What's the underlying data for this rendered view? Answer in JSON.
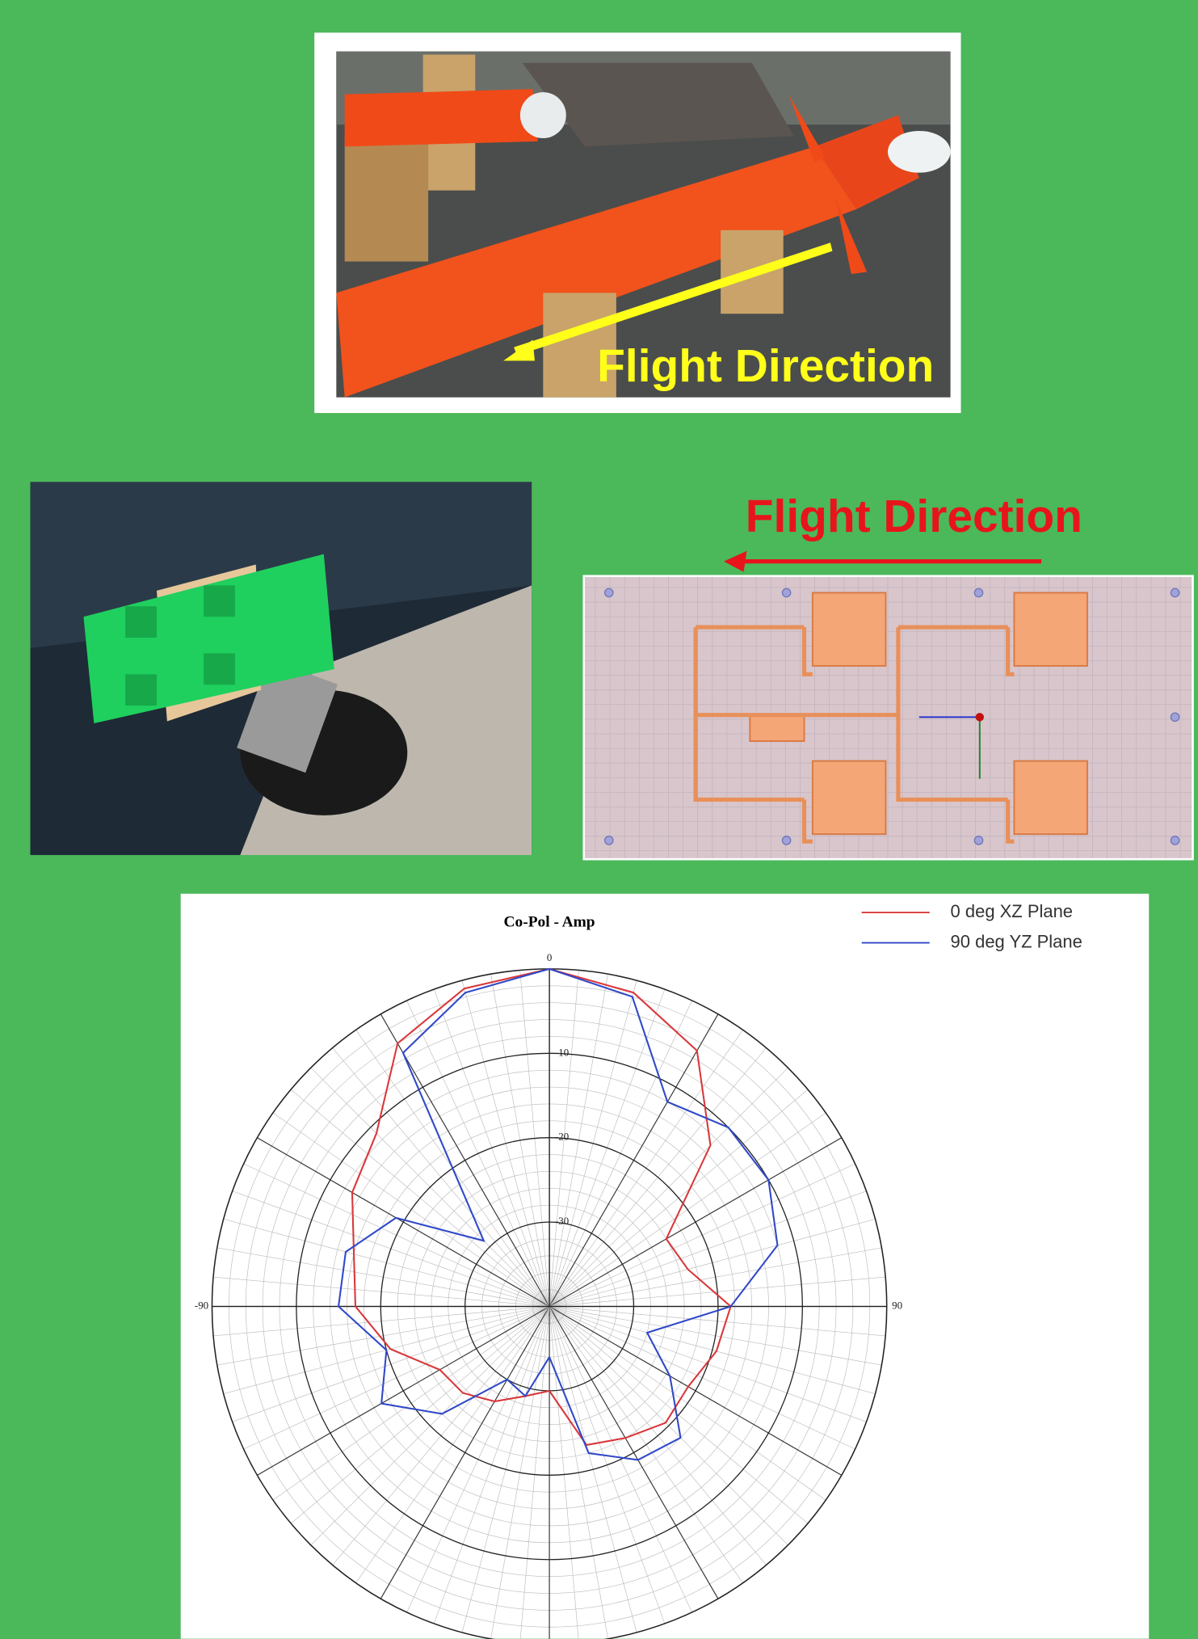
{
  "annotations": {
    "photo_label": "Flight Direction",
    "layout_label": "Flight Direction"
  },
  "chart_data": {
    "type": "polar",
    "title": "Co-Pol - Amp",
    "x": [
      -180,
      -165,
      -150,
      -135,
      -120,
      -105,
      -90,
      -75,
      -60,
      -45,
      -30,
      -15,
      0,
      15,
      30,
      45,
      60,
      75,
      90,
      105,
      120,
      135,
      150,
      165,
      180
    ],
    "series": [
      {
        "name": "0 deg XZ Plane",
        "color": "#d9373a",
        "values": [
          -30,
          -29,
          -27,
          -25.5,
          -25,
          -20.5,
          -17,
          -16,
          -13,
          -11,
          -4,
          -1,
          0,
          -1.5,
          -5,
          -13,
          -24,
          -23,
          -18.5,
          -19.5,
          -21,
          -20.5,
          -22,
          -23,
          -30
        ]
      },
      {
        "name": "90 deg YZ Plane",
        "color": "#2f48c8",
        "values": [
          -34,
          -29,
          -30,
          -22,
          -17,
          -20,
          -15,
          -15,
          -19,
          -29,
          -5.3,
          -1.5,
          0,
          -2,
          -12,
          -10,
          -10,
          -12,
          -18.5,
          -28,
          -23.5,
          -18,
          -19,
          -22,
          -34
        ]
      }
    ],
    "rlim": [
      -40,
      0
    ],
    "rticks": [
      -30,
      -20,
      -10
    ],
    "thetaticks": [
      -90,
      0,
      90
    ],
    "grid": true,
    "legend": "top-right"
  }
}
